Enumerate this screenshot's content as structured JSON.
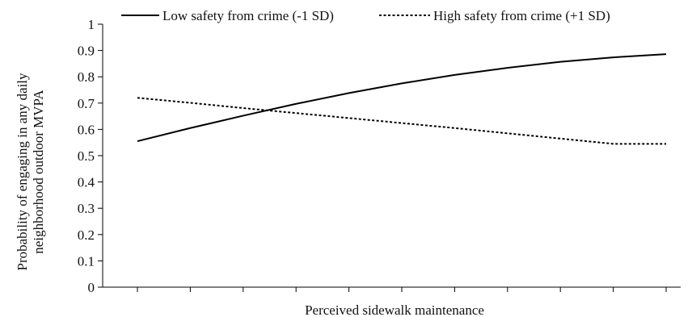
{
  "chart_data": {
    "type": "line",
    "title": "",
    "xlabel": "Perceived sidewalk maintenance",
    "ylabel": "Probability of engaging in any daily neighborhood outdoor MVPA",
    "ylabel_lines": [
      "Probability of engaging in any daily",
      "neighborhood outdoor MVPA"
    ],
    "ylim": [
      0,
      1
    ],
    "yticks": [
      "0",
      "0.1",
      "0.2",
      "0.3",
      "0.4",
      "0.5",
      "0.6",
      "0.7",
      "0.8",
      "0.9",
      "1"
    ],
    "x": [
      0,
      1,
      2,
      3,
      4,
      5,
      6,
      7,
      8,
      9,
      10
    ],
    "x_tick_labels_shown": false,
    "grid": false,
    "legend_position": "top",
    "series": [
      {
        "name": "Low safety from crime (-1 SD)",
        "style": "solid",
        "color": "#000000",
        "values": [
          0.555,
          0.605,
          0.652,
          0.697,
          0.738,
          0.775,
          0.807,
          0.834,
          0.857,
          0.874,
          0.886
        ]
      },
      {
        "name": "High safety from crime (+1 SD)",
        "style": "dashed",
        "color": "#000000",
        "values": [
          0.72,
          0.701,
          0.681,
          0.662,
          0.643,
          0.624,
          0.605,
          0.585,
          0.565,
          0.545,
          0.545
        ]
      }
    ]
  }
}
